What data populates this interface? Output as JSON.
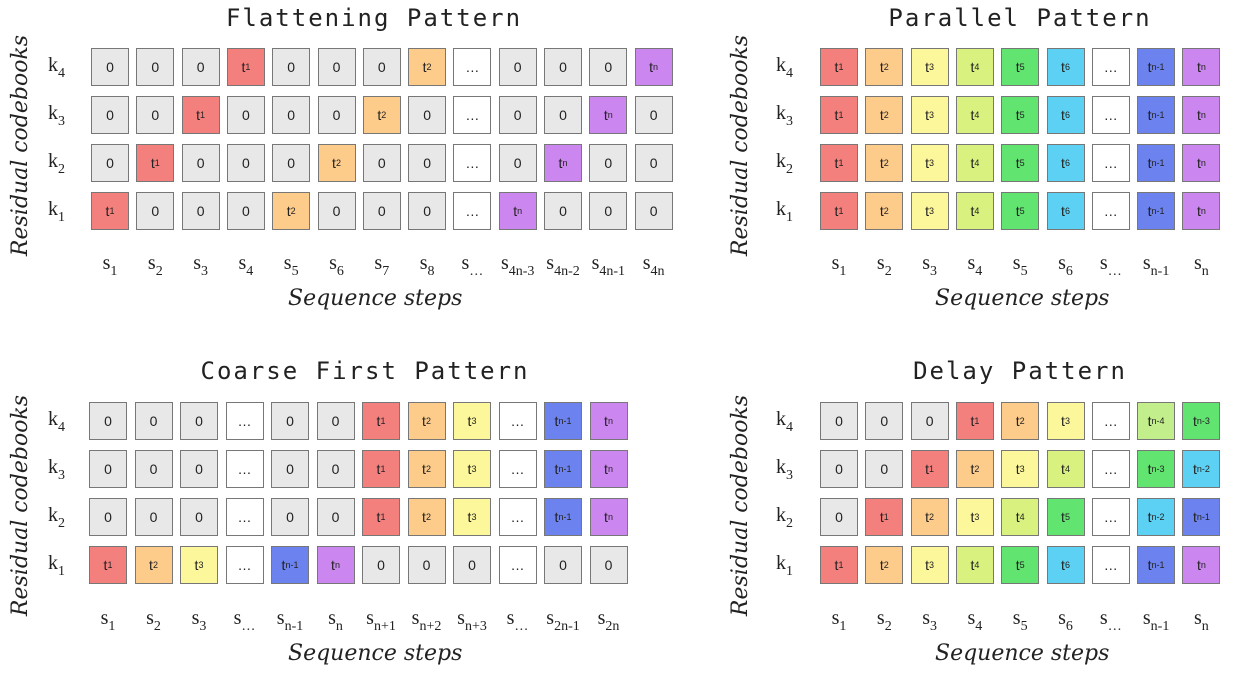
{
  "colors": {
    "0": "#e8e8e8",
    "dots": "#ffffff",
    "t1": "#f4807e",
    "t2": "#fdcb8a",
    "t3": "#fcf79a",
    "t4": "#d9f27f",
    "t5": "#61e470",
    "t6": "#5cd1f4",
    "tn-4": "#c2ef8c",
    "tn-3": "#61e470",
    "tn-2": "#5cd1f4",
    "tn-1": "#6c82ee",
    "tn": "#cc86ef",
    "tn+1": "#f4807e"
  },
  "panels": [
    {
      "id": "flattening",
      "title": "Flattening Pattern",
      "ylabel": "Residual codebooks",
      "xlabel": "Sequence steps",
      "row_labels": [
        {
          "base": "k",
          "sub": "4"
        },
        {
          "base": "k",
          "sub": "3"
        },
        {
          "base": "k",
          "sub": "2"
        },
        {
          "base": "k",
          "sub": "1"
        }
      ],
      "rows": [
        [
          "0",
          "0",
          "0",
          "t1",
          "0",
          "0",
          "0",
          "t2",
          "…",
          "0",
          "0",
          "0",
          "tn"
        ],
        [
          "0",
          "0",
          "t1",
          "0",
          "0",
          "0",
          "t2",
          "0",
          "…",
          "0",
          "0",
          "tn",
          "0"
        ],
        [
          "0",
          "t1",
          "0",
          "0",
          "0",
          "t2",
          "0",
          "0",
          "…",
          "0",
          "tn",
          "0",
          "0"
        ],
        [
          "t1",
          "0",
          "0",
          "0",
          "t2",
          "0",
          "0",
          "0",
          "…",
          "tn",
          "0",
          "0",
          "0"
        ]
      ],
      "cols": [
        {
          "base": "s",
          "sub": "1"
        },
        {
          "base": "s",
          "sub": "2"
        },
        {
          "base": "s",
          "sub": "3"
        },
        {
          "base": "s",
          "sub": "4"
        },
        {
          "base": "s",
          "sub": "5"
        },
        {
          "base": "s",
          "sub": "6"
        },
        {
          "base": "s",
          "sub": "7"
        },
        {
          "base": "s",
          "sub": "8"
        },
        {
          "base": "s",
          "sub": "…"
        },
        {
          "base": "s",
          "sub": "4n-3"
        },
        {
          "base": "s",
          "sub": "4n-2"
        },
        {
          "base": "s",
          "sub": "4n-1"
        },
        {
          "base": "s",
          "sub": "4n"
        }
      ]
    },
    {
      "id": "parallel",
      "title": "Parallel Pattern",
      "ylabel": "Residual codebooks",
      "xlabel": "Sequence steps",
      "row_labels": [
        {
          "base": "k",
          "sub": "4"
        },
        {
          "base": "k",
          "sub": "3"
        },
        {
          "base": "k",
          "sub": "2"
        },
        {
          "base": "k",
          "sub": "1"
        }
      ],
      "rows": [
        [
          "t1",
          "t2",
          "t3",
          "t4",
          "t5",
          "t6",
          "…",
          "tn-1",
          "tn"
        ],
        [
          "t1",
          "t2",
          "t3",
          "t4",
          "t5",
          "t6",
          "…",
          "tn-1",
          "tn"
        ],
        [
          "t1",
          "t2",
          "t3",
          "t4",
          "t5",
          "t6",
          "…",
          "tn-1",
          "tn"
        ],
        [
          "t1",
          "t2",
          "t3",
          "t4",
          "t5",
          "t6",
          "…",
          "tn-1",
          "tn"
        ]
      ],
      "cols": [
        {
          "base": "s",
          "sub": "1"
        },
        {
          "base": "s",
          "sub": "2"
        },
        {
          "base": "s",
          "sub": "3"
        },
        {
          "base": "s",
          "sub": "4"
        },
        {
          "base": "s",
          "sub": "5"
        },
        {
          "base": "s",
          "sub": "6"
        },
        {
          "base": "s",
          "sub": "…"
        },
        {
          "base": "s",
          "sub": "n-1"
        },
        {
          "base": "s",
          "sub": "n"
        }
      ]
    },
    {
      "id": "coarse-first",
      "title": "Coarse First Pattern",
      "ylabel": "Residual codebooks",
      "xlabel": "Sequence steps",
      "row_labels": [
        {
          "base": "k",
          "sub": "4"
        },
        {
          "base": "k",
          "sub": "3"
        },
        {
          "base": "k",
          "sub": "2"
        },
        {
          "base": "k",
          "sub": "1"
        }
      ],
      "rows": [
        [
          "0",
          "0",
          "0",
          "…",
          "0",
          "0",
          "t1",
          "t2",
          "t3",
          "…",
          "tn-1",
          "tn"
        ],
        [
          "0",
          "0",
          "0",
          "…",
          "0",
          "0",
          "t1",
          "t2",
          "t3",
          "…",
          "tn-1",
          "tn"
        ],
        [
          "0",
          "0",
          "0",
          "…",
          "0",
          "0",
          "t1",
          "t2",
          "t3",
          "…",
          "tn-1",
          "tn"
        ],
        [
          "t1",
          "t2",
          "t3",
          "…",
          "tn-1",
          "tn",
          "0",
          "0",
          "0",
          "…",
          "0",
          "0"
        ]
      ],
      "cols": [
        {
          "base": "s",
          "sub": "1"
        },
        {
          "base": "s",
          "sub": "2"
        },
        {
          "base": "s",
          "sub": "3"
        },
        {
          "base": "s",
          "sub": "…"
        },
        {
          "base": "s",
          "sub": "n-1"
        },
        {
          "base": "s",
          "sub": "n"
        },
        {
          "base": "s",
          "sub": "n+1"
        },
        {
          "base": "s",
          "sub": "n+2"
        },
        {
          "base": "s",
          "sub": "n+3"
        },
        {
          "base": "s",
          "sub": "…"
        },
        {
          "base": "s",
          "sub": "2n-1"
        },
        {
          "base": "s",
          "sub": "2n"
        }
      ]
    },
    {
      "id": "delay",
      "title": "Delay Pattern",
      "ylabel": "Residual codebooks",
      "xlabel": "Sequence steps",
      "row_labels": [
        {
          "base": "k",
          "sub": "4"
        },
        {
          "base": "k",
          "sub": "3"
        },
        {
          "base": "k",
          "sub": "2"
        },
        {
          "base": "k",
          "sub": "1"
        }
      ],
      "rows": [
        [
          "0",
          "0",
          "0",
          "t1",
          "t2",
          "t3",
          "…",
          "tn-4",
          "tn-3"
        ],
        [
          "0",
          "0",
          "t1",
          "t2",
          "t3",
          "t4",
          "…",
          "tn-3",
          "tn-2"
        ],
        [
          "0",
          "t1",
          "t2",
          "t3",
          "t4",
          "t5",
          "…",
          "tn-2",
          "tn-1"
        ],
        [
          "t1",
          "t2",
          "t3",
          "t4",
          "t5",
          "t6",
          "…",
          "tn-1",
          "tn"
        ]
      ],
      "cols": [
        {
          "base": "s",
          "sub": "1"
        },
        {
          "base": "s",
          "sub": "2"
        },
        {
          "base": "s",
          "sub": "3"
        },
        {
          "base": "s",
          "sub": "4"
        },
        {
          "base": "s",
          "sub": "5"
        },
        {
          "base": "s",
          "sub": "6"
        },
        {
          "base": "s",
          "sub": "…"
        },
        {
          "base": "s",
          "sub": "n-1"
        },
        {
          "base": "s",
          "sub": "n"
        }
      ]
    }
  ]
}
